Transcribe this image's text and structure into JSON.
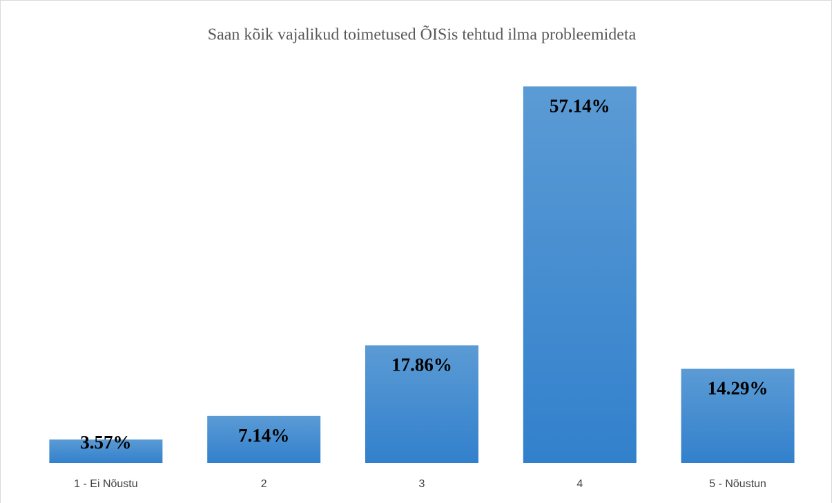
{
  "chart_data": {
    "type": "bar",
    "title": "Saan kõik vajalikud toimetused ÕISis tehtud ilma probleemideta",
    "categories": [
      "1 - Ei Nõustu",
      "2",
      "3",
      "4",
      "5 - Nõustun"
    ],
    "values": [
      3.57,
      7.14,
      17.86,
      57.14,
      14.29
    ],
    "value_labels": [
      "3.57%",
      "7.14%",
      "17.86%",
      "57.14%",
      "14.29%"
    ],
    "color": "#4a8fd3",
    "ylim": [
      0,
      60
    ]
  }
}
